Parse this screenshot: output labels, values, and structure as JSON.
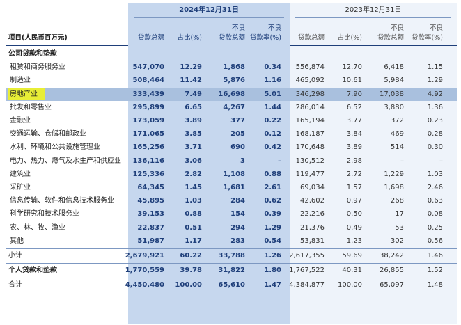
{
  "header": {
    "item_label": "项目(人民币百万元)",
    "year_2024": "2024年12月31日",
    "year_2023": "2023年12月31日",
    "cols_2024": [
      "贷款总额",
      "占比(%)",
      "不良\n贷款总额",
      "不良\n贷款率(%)"
    ],
    "cols_2023": [
      "贷款总额",
      "占比(%)",
      "不良\n贷款总额",
      "不良\n贷款率(%)"
    ]
  },
  "sections": {
    "corporate": "公司贷款和垫款"
  },
  "rows": [
    {
      "label": "租赁和商务服务业",
      "y24": [
        "547,070",
        "12.29",
        "1,868",
        "0.34"
      ],
      "y23": [
        "556,874",
        "12.70",
        "6,418",
        "1.15"
      ]
    },
    {
      "label": "制造业",
      "y24": [
        "508,464",
        "11.42",
        "5,876",
        "1.16"
      ],
      "y23": [
        "465,092",
        "10.61",
        "5,984",
        "1.29"
      ]
    },
    {
      "label": "房地产业",
      "y24": [
        "333,439",
        "7.49",
        "16,698",
        "5.01"
      ],
      "y23": [
        "346,298",
        "7.90",
        "17,038",
        "4.92"
      ],
      "highlight": true
    },
    {
      "label": "批发和零售业",
      "y24": [
        "295,899",
        "6.65",
        "4,267",
        "1.44"
      ],
      "y23": [
        "286,014",
        "6.52",
        "3,880",
        "1.36"
      ]
    },
    {
      "label": "金融业",
      "y24": [
        "173,059",
        "3.89",
        "377",
        "0.22"
      ],
      "y23": [
        "165,194",
        "3.77",
        "372",
        "0.23"
      ]
    },
    {
      "label": "交通运输、仓储和邮政业",
      "y24": [
        "171,065",
        "3.85",
        "205",
        "0.12"
      ],
      "y23": [
        "168,187",
        "3.84",
        "469",
        "0.28"
      ]
    },
    {
      "label": "水利、环境和公共设施管理业",
      "y24": [
        "165,256",
        "3.71",
        "690",
        "0.42"
      ],
      "y23": [
        "170,648",
        "3.89",
        "514",
        "0.30"
      ]
    },
    {
      "label": "电力、热力、燃气及水生产和供应业",
      "y24": [
        "136,116",
        "3.06",
        "3",
        "–"
      ],
      "y23": [
        "130,512",
        "2.98",
        "–",
        "–"
      ]
    },
    {
      "label": "建筑业",
      "y24": [
        "125,336",
        "2.82",
        "1,108",
        "0.88"
      ],
      "y23": [
        "119,477",
        "2.72",
        "1,229",
        "1.03"
      ]
    },
    {
      "label": "采矿业",
      "y24": [
        "64,345",
        "1.45",
        "1,681",
        "2.61"
      ],
      "y23": [
        "69,034",
        "1.57",
        "1,698",
        "2.46"
      ]
    },
    {
      "label": "信息传输、软件和信息技术服务业",
      "y24": [
        "45,895",
        "1.03",
        "284",
        "0.62"
      ],
      "y23": [
        "42,602",
        "0.97",
        "268",
        "0.63"
      ]
    },
    {
      "label": "科学研究和技术服务业",
      "y24": [
        "39,153",
        "0.88",
        "154",
        "0.39"
      ],
      "y23": [
        "22,216",
        "0.50",
        "17",
        "0.08"
      ]
    },
    {
      "label": "农、林、牧、渔业",
      "y24": [
        "22,837",
        "0.51",
        "294",
        "1.29"
      ],
      "y23": [
        "21,376",
        "0.49",
        "53",
        "0.25"
      ]
    },
    {
      "label": "其他",
      "y24": [
        "51,987",
        "1.17",
        "283",
        "0.54"
      ],
      "y23": [
        "53,831",
        "1.23",
        "302",
        "0.56"
      ]
    }
  ],
  "subtotal": {
    "label": "小计",
    "y24": [
      "2,679,921",
      "60.22",
      "33,788",
      "1.26"
    ],
    "y23": [
      "2,617,355",
      "59.69",
      "38,242",
      "1.46"
    ]
  },
  "personal": {
    "label": "个人贷款和垫款",
    "y24": [
      "1,770,559",
      "39.78",
      "31,822",
      "1.80"
    ],
    "y23": [
      "1,767,522",
      "40.31",
      "26,855",
      "1.52"
    ]
  },
  "total": {
    "label": "合计",
    "y24": [
      "4,450,480",
      "100.00",
      "65,610",
      "1.47"
    ],
    "y23": [
      "4,384,877",
      "100.00",
      "65,097",
      "1.48"
    ]
  },
  "colors": {
    "band_2024": "#c6d7ee",
    "band_2023": "#eef3fa",
    "highlight_row": "#a9c0de",
    "highlight_label": "#e8ee36",
    "accent": "#1f3f7a"
  }
}
